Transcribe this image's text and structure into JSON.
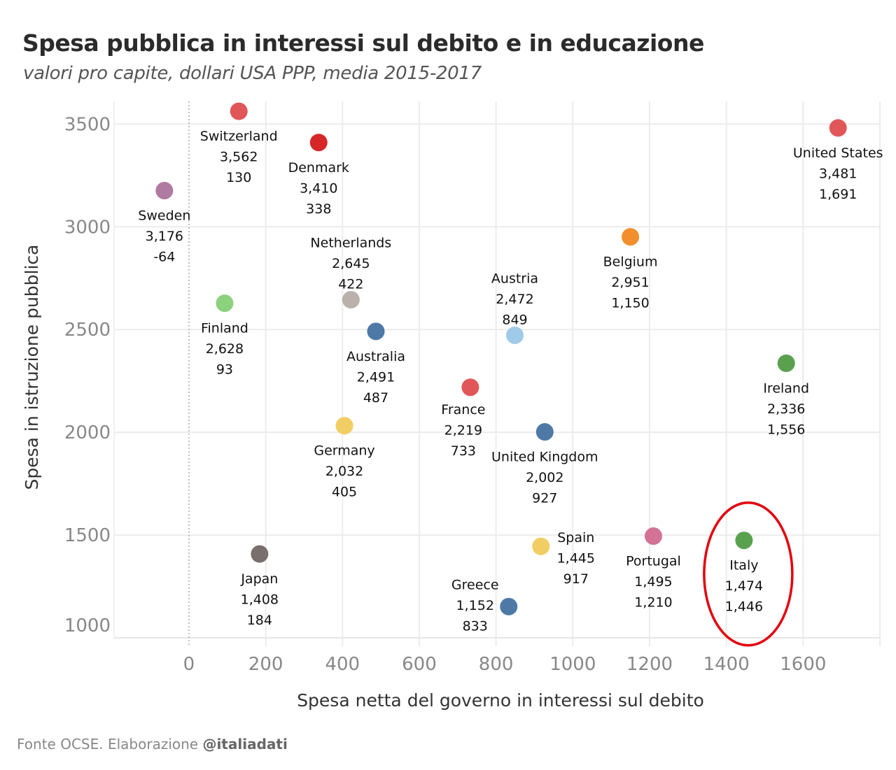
{
  "header": {
    "title": "Spesa pubblica in interessi sul debito e in educazione",
    "subtitle": "valori pro capite, dollari USA PPP, media 2015-2017"
  },
  "footer": {
    "source_prefix": "Fonte OCSE. Elaborazione ",
    "source_handle": "@italiadati"
  },
  "chart_data": {
    "type": "scatter",
    "title": "Spesa pubblica in interessi sul debito e in educazione",
    "subtitle": "valori pro capite, dollari USA PPP, media 2015-2017",
    "xlabel": "Spesa netta del governo in interessi sul debito",
    "ylabel": "Spesa in istruzione pubblica",
    "xlim": [
      -195,
      1800
    ],
    "ylim": [
      1000,
      3610
    ],
    "xticks": [
      0,
      200,
      400,
      600,
      800,
      1000,
      1200,
      1400,
      1600
    ],
    "yticks": [
      1000,
      1500,
      2000,
      2500,
      3000,
      3500
    ],
    "grid": true,
    "zero_line": "dotted vertical at x=0",
    "label_format": "name / education (y) / interest (x)",
    "points": [
      {
        "name": "Switzerland",
        "y": 3562,
        "x": 130,
        "y_label": "3,562",
        "x_label": "130",
        "color": "#e15759",
        "label_pos": "below"
      },
      {
        "name": "Denmark",
        "y": 3410,
        "x": 338,
        "y_label": "3,410",
        "x_label": "338",
        "color": "#d62728",
        "label_pos": "below"
      },
      {
        "name": "United States",
        "y": 3481,
        "x": 1691,
        "y_label": "3,481",
        "x_label": "1,691",
        "color": "#e15759",
        "label_pos": "below"
      },
      {
        "name": "Sweden",
        "y": 3176,
        "x": -64,
        "y_label": "3,176",
        "x_label": "-64",
        "color": "#b07aa1",
        "label_pos": "below"
      },
      {
        "name": "Netherlands",
        "y": 2645,
        "x": 422,
        "y_label": "2,645",
        "x_label": "422",
        "color": "#bab0ac",
        "label_pos": "above"
      },
      {
        "name": "Belgium",
        "y": 2951,
        "x": 1150,
        "y_label": "2,951",
        "x_label": "1,150",
        "color": "#f28e2b",
        "label_pos": "below"
      },
      {
        "name": "Finland",
        "y": 2628,
        "x": 93,
        "y_label": "2,628",
        "x_label": "93",
        "color": "#8cd17d",
        "label_pos": "below"
      },
      {
        "name": "Australia",
        "y": 2491,
        "x": 487,
        "y_label": "2,491",
        "x_label": "487",
        "color": "#4e79a7",
        "label_pos": "below"
      },
      {
        "name": "Austria",
        "y": 2472,
        "x": 849,
        "y_label": "2,472",
        "x_label": "849",
        "color": "#a0cbe8",
        "label_pos": "above"
      },
      {
        "name": "Ireland",
        "y": 2336,
        "x": 1556,
        "y_label": "2,336",
        "x_label": "1,556",
        "color": "#59a14f",
        "label_pos": "below"
      },
      {
        "name": "France",
        "y": 2219,
        "x": 733,
        "y_label": "2,219",
        "x_label": "733",
        "color": "#e15759",
        "label_pos": "below-left"
      },
      {
        "name": "Germany",
        "y": 2032,
        "x": 405,
        "y_label": "2,032",
        "x_label": "405",
        "color": "#f1ce63",
        "label_pos": "below"
      },
      {
        "name": "United Kingdom",
        "y": 2002,
        "x": 927,
        "y_label": "2,002",
        "x_label": "927",
        "color": "#4e79a7",
        "label_pos": "below"
      },
      {
        "name": "Japan",
        "y": 1408,
        "x": 184,
        "y_label": "1,408",
        "x_label": "184",
        "color": "#79706e",
        "label_pos": "below"
      },
      {
        "name": "Spain",
        "y": 1445,
        "x": 917,
        "y_label": "1,445",
        "x_label": "917",
        "color": "#f1ce63",
        "label_pos": "right"
      },
      {
        "name": "Portugal",
        "y": 1495,
        "x": 1210,
        "y_label": "1,495",
        "x_label": "1,210",
        "color": "#d37295",
        "label_pos": "below"
      },
      {
        "name": "Greece",
        "y": 1152,
        "x": 833,
        "y_label": "1,152",
        "x_label": "833",
        "color": "#4e79a7",
        "label_pos": "left"
      },
      {
        "name": "Italy",
        "y": 1474,
        "x": 1446,
        "y_label": "1,474",
        "x_label": "1,446",
        "color": "#59a14f",
        "label_pos": "below",
        "highlighted": true
      }
    ],
    "annotation": {
      "type": "ellipse",
      "target": "Italy",
      "color": "#e3000f"
    }
  }
}
